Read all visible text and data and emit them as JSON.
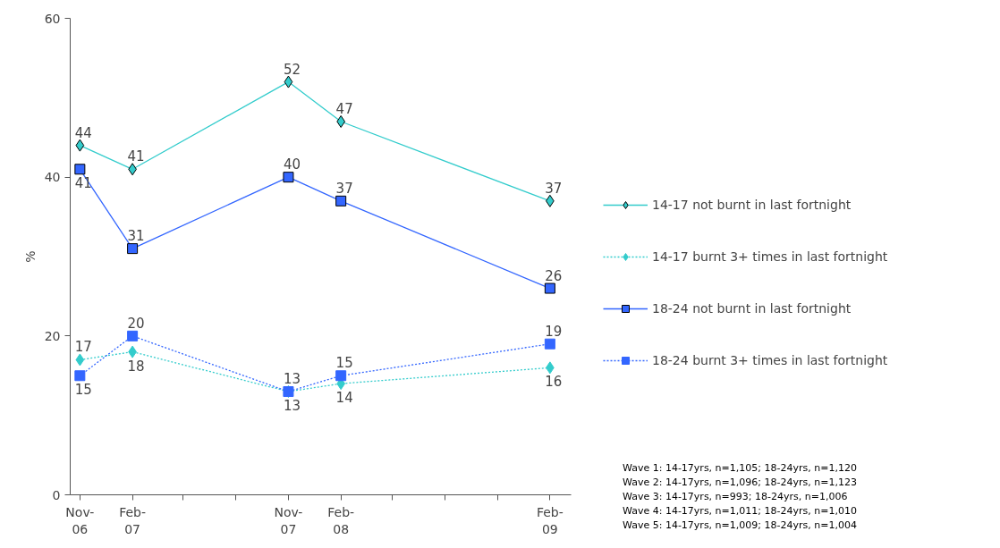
{
  "chart_data": {
    "type": "line",
    "ylabel": "%",
    "x": [
      "2006-11",
      "2007-02",
      "2007-11",
      "2008-02",
      "2009-02"
    ],
    "xlim": [
      "2006-10-15",
      "2009-03-10"
    ],
    "xticks": [
      {
        "value": "2006-11",
        "label": "Nov-06"
      },
      {
        "value": "2007-02",
        "label": "Feb-07"
      },
      {
        "value": "2007-05",
        "label": null
      },
      {
        "value": "2007-08",
        "label": null
      },
      {
        "value": "2007-11",
        "label": "Nov-07"
      },
      {
        "value": "2008-02",
        "label": "Feb-08"
      },
      {
        "value": "2008-05",
        "label": null
      },
      {
        "value": "2008-08",
        "label": null
      },
      {
        "value": "2008-11",
        "label": null
      },
      {
        "value": "2009-02",
        "label": "Feb-09"
      }
    ],
    "ylim": [
      0,
      60
    ],
    "yticks": [
      0,
      20,
      40,
      60
    ],
    "series": [
      {
        "name": "14-17 not burnt in last fortnight",
        "color": "#33cccc",
        "values": [
          44,
          41,
          52,
          47,
          37
        ],
        "marker": "diamond",
        "line_style": "solid"
      },
      {
        "name": "14-17 burnt 3+ times in last fortnight",
        "color": "#33cccc",
        "values": [
          17,
          18,
          13,
          14,
          16
        ],
        "marker": "diamond",
        "line_style": "dotted"
      },
      {
        "name": "18-24 not burnt in last fortnight",
        "color": "#3366ff",
        "values": [
          41,
          31,
          40,
          37,
          26
        ],
        "marker": "square",
        "line_style": "solid"
      },
      {
        "name": "18-24 burnt 3+ times in last fortnight",
        "color": "#3366ff",
        "values": [
          15,
          20,
          13,
          15,
          19
        ],
        "marker": "square",
        "line_style": "dotted"
      }
    ],
    "data_labels": true,
    "legend": "right",
    "grid": false,
    "annotations": [
      "Wave 1: 14-17yrs, n=1,105; 18-24yrs, n=1,120",
      "Wave 2: 14-17yrs, n=1,096; 18-24yrs, n=1,123",
      "Wave 3: 14-17yrs, n=993; 18-24yrs, n=1,006",
      "Wave 4: 14-17yrs, n=1,011; 18-24yrs, n=1,010",
      "Wave 5: 14-17yrs, n=1,009; 18-24yrs, n=1,004"
    ]
  }
}
